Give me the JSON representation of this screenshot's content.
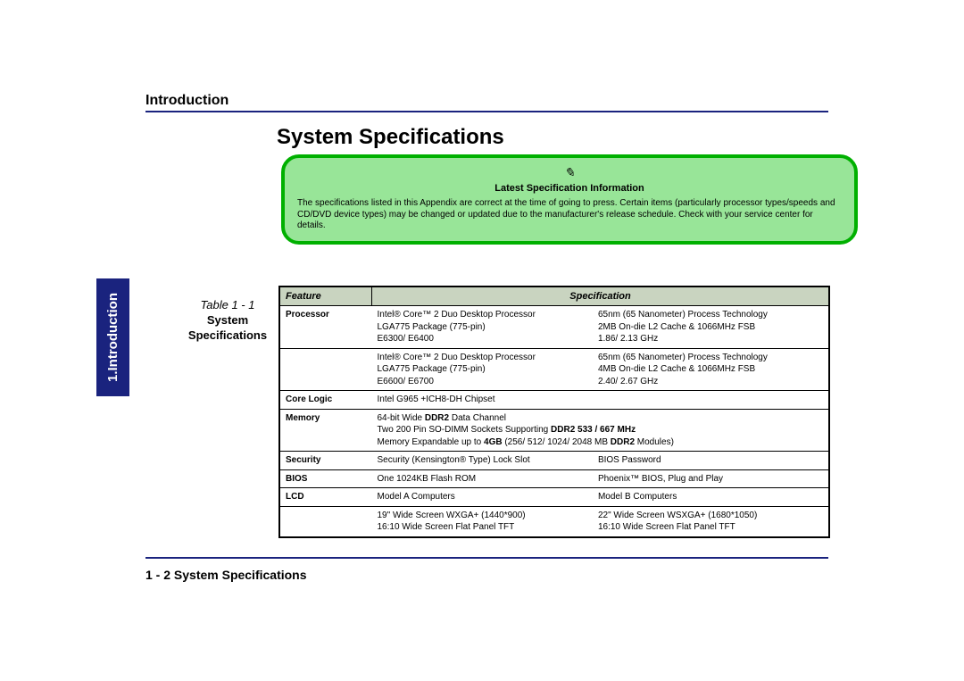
{
  "chapter_tab": "1.Introduction",
  "section_header": "Introduction",
  "page_title": "System Specifications",
  "note": {
    "icon": "✎",
    "title": "Latest Specification Information",
    "text": "The specifications listed in this Appendix are correct at the time of going to press. Certain items (particularly processor types/speeds and CD/DVD device types) may be changed or updated due to the manufacturer's release schedule. Check with your service center for details."
  },
  "table_caption": {
    "label": "Table 1 - 1",
    "name_line1": "System",
    "name_line2": "Specifications"
  },
  "table": {
    "headers": {
      "feature": "Feature",
      "spec": "Specification"
    },
    "rows": {
      "proc1": {
        "feature": "Processor",
        "col1_l1": "Intel® Core™ 2 Duo Desktop Processor",
        "col1_l2": "LGA775 Package (775-pin)",
        "col1_l3": "E6300/ E6400",
        "col2_l1": "65nm (65 Nanometer) Process Technology",
        "col2_l2": "2MB On-die L2 Cache & 1066MHz FSB",
        "col2_l3": "1.86/ 2.13 GHz"
      },
      "proc2": {
        "col1_l1": "Intel® Core™ 2 Duo Desktop Processor",
        "col1_l2": "LGA775 Package (775-pin)",
        "col1_l3": "E6600/ E6700",
        "col2_l1": "65nm (65 Nanometer) Process Technology",
        "col2_l2": "4MB On-die L2 Cache & 1066MHz FSB",
        "col2_l3": "2.40/ 2.67 GHz"
      },
      "corelogic": {
        "feature": "Core Logic",
        "col1_l1": "Intel G965 +ICH8-DH Chipset"
      },
      "memory": {
        "feature": "Memory",
        "col1_l1_a": "64-bit Wide ",
        "col1_l1_b": "DDR2",
        "col1_l1_c": " Data Channel",
        "col1_l2_a": "Two 200 Pin SO-DIMM Sockets Supporting ",
        "col1_l2_b": "DDR2 533 / 667 MHz",
        "col1_l3_a": "Memory Expandable up to ",
        "col1_l3_b": "4GB",
        "col1_l3_c": " (256/ 512/ 1024/ 2048 MB ",
        "col1_l3_d": "DDR2",
        "col1_l3_e": " Modules)"
      },
      "security": {
        "feature": "Security",
        "col1_l1": "Security (Kensington® Type) Lock Slot",
        "col2_l1": "BIOS Password"
      },
      "bios": {
        "feature": "BIOS",
        "col1_l1": "One 1024KB Flash ROM",
        "col2_l1": "Phoenix™ BIOS, Plug and Play"
      },
      "lcd": {
        "feature": "LCD",
        "col1_l1": "Model A Computers",
        "col2_l1": "Model B Computers"
      },
      "lcd2": {
        "col1_l1": "19\" Wide Screen WXGA+ (1440*900)",
        "col1_l2": "16:10 Wide Screen Flat Panel TFT",
        "col2_l1": "22\" Wide Screen WSXGA+ (1680*1050)",
        "col2_l2": "16:10 Wide Screen Flat Panel TFT"
      }
    }
  },
  "footer": "1 - 2  System Specifications",
  "colors": {
    "accent": "#1a237e",
    "note_bg": "#98e598",
    "note_border": "#00b000",
    "table_header_bg": "#c9d4c0"
  }
}
